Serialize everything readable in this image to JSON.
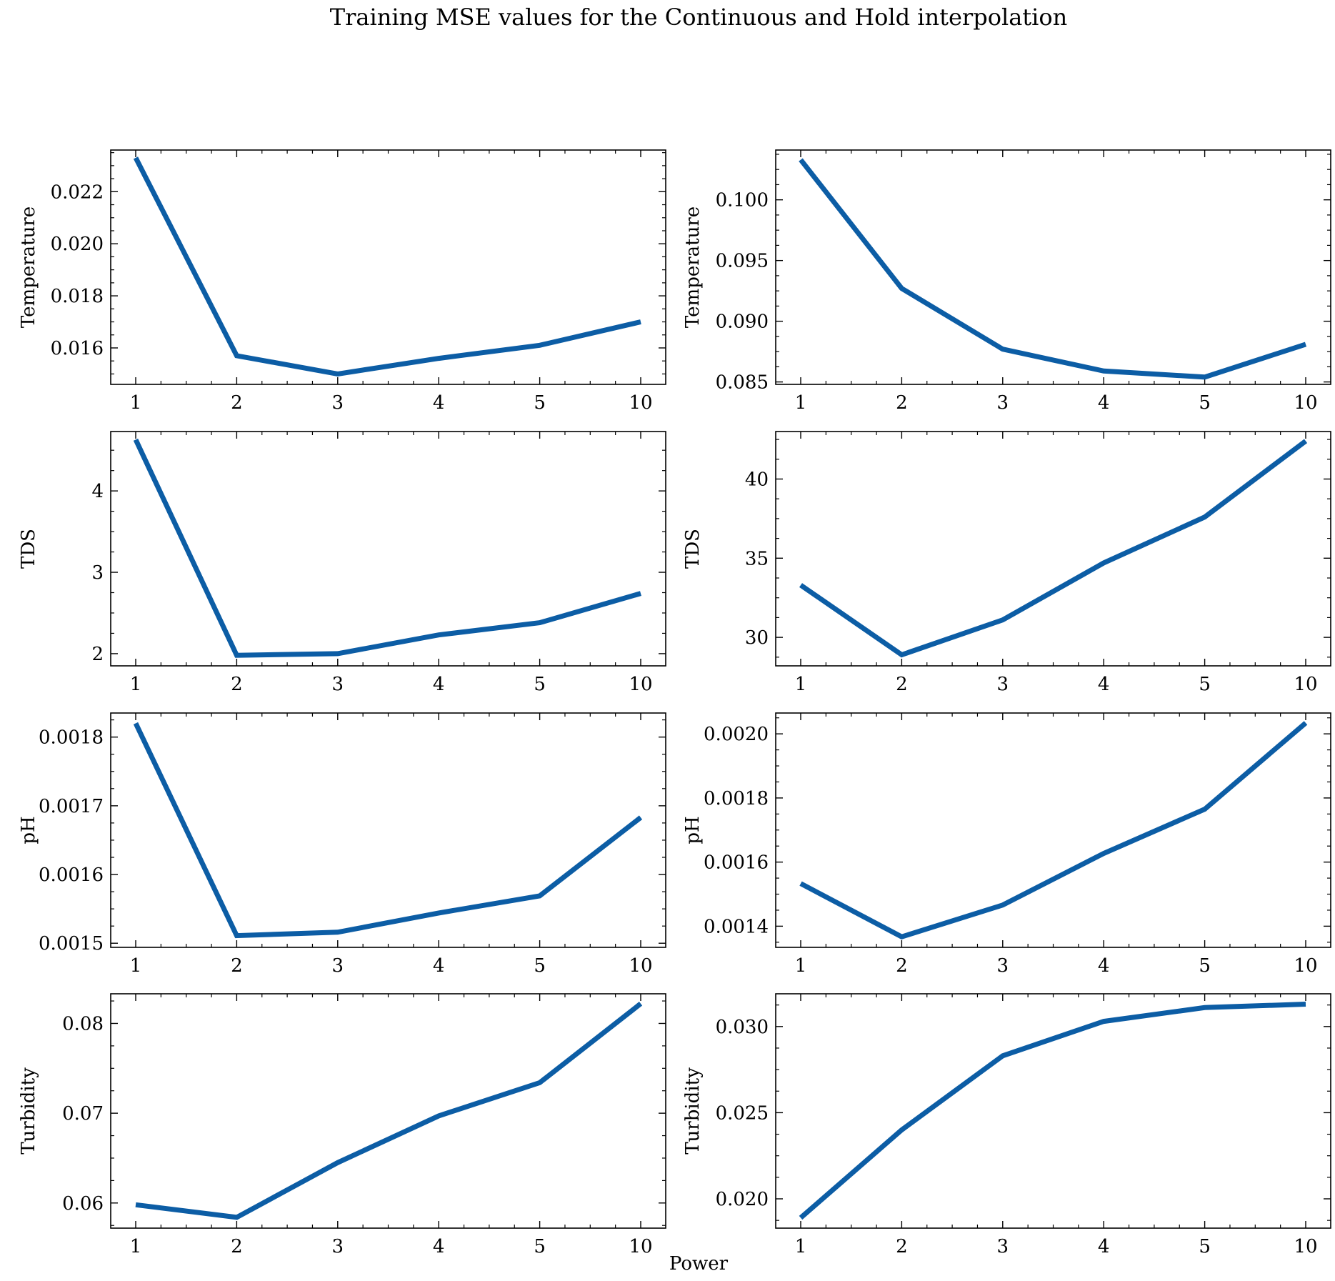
{
  "title": "Training MSE values for the Continuous and Hold interpolation",
  "xlabel": "Power",
  "chart_data": [
    {
      "type": "line",
      "row": 0,
      "col": 0,
      "ylabel": "Temperature",
      "categories": [
        "1",
        "2",
        "3",
        "4",
        "5",
        "10"
      ],
      "values": [
        0.0233,
        0.0157,
        0.015,
        0.0156,
        0.0161,
        0.017
      ],
      "ylim": [
        0.0146,
        0.0236
      ],
      "yticks": [
        0.016,
        0.018,
        0.02,
        0.022
      ],
      "ytick_labels": [
        "0.016",
        "0.018",
        "0.020",
        "0.022"
      ],
      "color": "#0C5DA5"
    },
    {
      "type": "line",
      "row": 0,
      "col": 1,
      "ylabel": "Temperature",
      "categories": [
        "1",
        "2",
        "3",
        "4",
        "5",
        "10"
      ],
      "values": [
        0.1033,
        0.0927,
        0.0877,
        0.0859,
        0.0854,
        0.0881
      ],
      "ylim": [
        0.0848,
        0.1041
      ],
      "yticks": [
        0.085,
        0.09,
        0.095,
        0.1
      ],
      "ytick_labels": [
        "0.085",
        "0.090",
        "0.095",
        "0.100"
      ],
      "color": "#0C5DA5"
    },
    {
      "type": "line",
      "row": 1,
      "col": 0,
      "ylabel": "TDS",
      "categories": [
        "1",
        "2",
        "3",
        "4",
        "5",
        "10"
      ],
      "values": [
        4.63,
        1.98,
        2.0,
        2.23,
        2.38,
        2.74
      ],
      "ylim": [
        1.85,
        4.73
      ],
      "yticks": [
        2,
        3,
        4
      ],
      "ytick_labels": [
        "2",
        "3",
        "4"
      ],
      "color": "#0C5DA5"
    },
    {
      "type": "line",
      "row": 1,
      "col": 1,
      "ylabel": "TDS",
      "categories": [
        "1",
        "2",
        "3",
        "4",
        "5",
        "10"
      ],
      "values": [
        33.3,
        28.9,
        31.1,
        34.7,
        37.6,
        42.4
      ],
      "ylim": [
        28.2,
        43.0
      ],
      "yticks": [
        30,
        35,
        40
      ],
      "ytick_labels": [
        "30",
        "35",
        "40"
      ],
      "color": "#0C5DA5"
    },
    {
      "type": "line",
      "row": 2,
      "col": 0,
      "ylabel": "pH",
      "categories": [
        "1",
        "2",
        "3",
        "4",
        "5",
        "10"
      ],
      "values": [
        0.00182,
        0.001511,
        0.001516,
        0.001544,
        0.001569,
        0.001683
      ],
      "ylim": [
        0.001494,
        0.001835
      ],
      "yticks": [
        0.0015,
        0.0016,
        0.0017,
        0.0018
      ],
      "ytick_labels": [
        "0.0015",
        "0.0016",
        "0.0017",
        "0.0018"
      ],
      "color": "#0C5DA5"
    },
    {
      "type": "line",
      "row": 2,
      "col": 1,
      "ylabel": "pH",
      "categories": [
        "1",
        "2",
        "3",
        "4",
        "5",
        "10"
      ],
      "values": [
        0.001533,
        0.001367,
        0.001466,
        0.001627,
        0.001765,
        0.002034
      ],
      "ylim": [
        0.001334,
        0.002065
      ],
      "yticks": [
        0.0014,
        0.0016,
        0.0018,
        0.002
      ],
      "ytick_labels": [
        "0.0014",
        "0.0016",
        "0.0018",
        "0.0020"
      ],
      "color": "#0C5DA5"
    },
    {
      "type": "line",
      "row": 3,
      "col": 0,
      "ylabel": "Turbidity",
      "categories": [
        "1",
        "2",
        "3",
        "4",
        "5",
        "10"
      ],
      "values": [
        0.0598,
        0.0584,
        0.0645,
        0.0697,
        0.0734,
        0.0822
      ],
      "ylim": [
        0.0572,
        0.0833
      ],
      "yticks": [
        0.06,
        0.07,
        0.08
      ],
      "ytick_labels": [
        "0.06",
        "0.07",
        "0.08"
      ],
      "color": "#0C5DA5"
    },
    {
      "type": "line",
      "row": 3,
      "col": 1,
      "ylabel": "Turbidity",
      "categories": [
        "1",
        "2",
        "3",
        "4",
        "5",
        "10"
      ],
      "values": [
        0.0189,
        0.024,
        0.0283,
        0.0303,
        0.0311,
        0.0313
      ],
      "ylim": [
        0.0183,
        0.0319
      ],
      "yticks": [
        0.02,
        0.025,
        0.03
      ],
      "ytick_labels": [
        "0.020",
        "0.025",
        "0.030"
      ],
      "color": "#0C5DA5"
    }
  ]
}
